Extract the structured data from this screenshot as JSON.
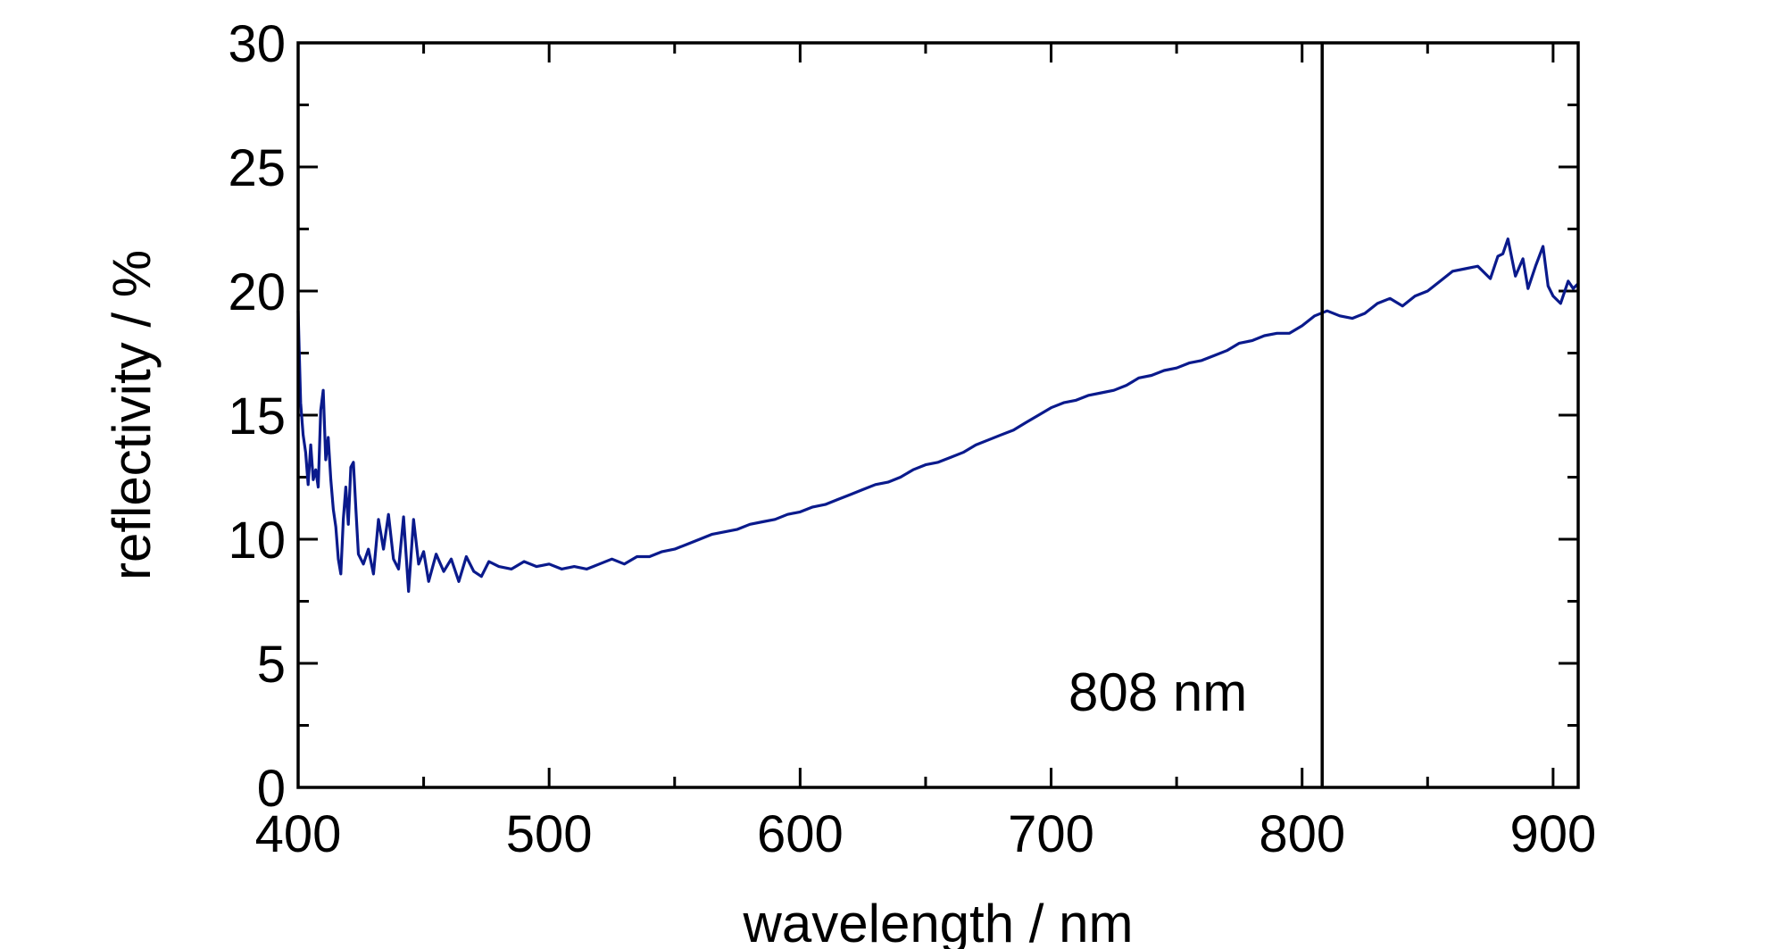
{
  "chart_data": {
    "type": "line",
    "title": "",
    "xlabel": "wavelength / nm",
    "ylabel": "reflectivity / %",
    "xlim": [
      400,
      910
    ],
    "ylim": [
      0,
      30
    ],
    "x_ticks": [
      400,
      500,
      600,
      700,
      800,
      900
    ],
    "x_tick_labels": [
      "400",
      "500",
      "600",
      "700",
      "800",
      "900"
    ],
    "y_ticks": [
      0,
      5,
      10,
      15,
      20,
      25,
      30
    ],
    "y_tick_labels": [
      "0",
      "5",
      "10",
      "15",
      "20",
      "25",
      "30"
    ],
    "grid": false,
    "series": [
      {
        "color": "#0a1a8c",
        "x": [
          400,
          401,
          402,
          403,
          404,
          405,
          406,
          407,
          408,
          409,
          410,
          411,
          412,
          413,
          414,
          415,
          416,
          417,
          418,
          419,
          420,
          421,
          422,
          423,
          424,
          426,
          428,
          430,
          432,
          434,
          436,
          438,
          440,
          442,
          444,
          446,
          448,
          450,
          452,
          455,
          458,
          461,
          464,
          467,
          470,
          473,
          476,
          480,
          485,
          490,
          495,
          500,
          505,
          510,
          515,
          520,
          525,
          530,
          535,
          540,
          545,
          550,
          555,
          560,
          565,
          570,
          575,
          580,
          585,
          590,
          595,
          600,
          605,
          610,
          615,
          620,
          625,
          630,
          635,
          640,
          645,
          650,
          655,
          660,
          665,
          670,
          675,
          680,
          685,
          690,
          695,
          700,
          705,
          710,
          715,
          720,
          725,
          730,
          735,
          740,
          745,
          750,
          755,
          760,
          765,
          770,
          775,
          780,
          785,
          790,
          795,
          800,
          805,
          810,
          815,
          820,
          825,
          830,
          835,
          840,
          845,
          850,
          855,
          860,
          865,
          870,
          875,
          878,
          880,
          882,
          885,
          888,
          890,
          893,
          896,
          898,
          900,
          903,
          906,
          908,
          910
        ],
        "y": [
          19.2,
          15.5,
          14.2,
          13.5,
          12.2,
          13.8,
          12.4,
          12.8,
          12.1,
          15.2,
          16.0,
          13.2,
          14.1,
          12.4,
          11.2,
          10.5,
          9.2,
          8.6,
          10.8,
          12.1,
          10.6,
          12.9,
          13.1,
          11.2,
          9.4,
          9.0,
          9.6,
          8.6,
          10.8,
          9.6,
          11.0,
          9.2,
          8.8,
          10.9,
          7.9,
          10.8,
          9.0,
          9.5,
          8.3,
          9.4,
          8.7,
          9.2,
          8.3,
          9.3,
          8.7,
          8.5,
          9.1,
          8.9,
          8.8,
          9.1,
          8.9,
          9.0,
          8.8,
          8.9,
          8.8,
          9.0,
          9.2,
          9.0,
          9.3,
          9.3,
          9.5,
          9.6,
          9.8,
          10.0,
          10.2,
          10.3,
          10.4,
          10.6,
          10.7,
          10.8,
          11.0,
          11.1,
          11.3,
          11.4,
          11.6,
          11.8,
          12.0,
          12.2,
          12.3,
          12.5,
          12.8,
          13.0,
          13.1,
          13.3,
          13.5,
          13.8,
          14.0,
          14.2,
          14.4,
          14.7,
          15.0,
          15.3,
          15.5,
          15.6,
          15.8,
          15.9,
          16.0,
          16.2,
          16.5,
          16.6,
          16.8,
          16.9,
          17.1,
          17.2,
          17.4,
          17.6,
          17.9,
          18.0,
          18.2,
          18.3,
          18.3,
          18.6,
          19.0,
          19.2,
          19.0,
          18.9,
          19.1,
          19.5,
          19.7,
          19.4,
          19.8,
          20.0,
          20.4,
          20.8,
          20.9,
          21.0,
          20.5,
          21.4,
          21.5,
          22.1,
          20.6,
          21.3,
          20.1,
          21.0,
          21.8,
          20.2,
          19.8,
          19.5,
          20.4,
          20.1,
          20.3
        ]
      }
    ],
    "reference_line": {
      "x": 808,
      "label": "808 nm"
    }
  }
}
